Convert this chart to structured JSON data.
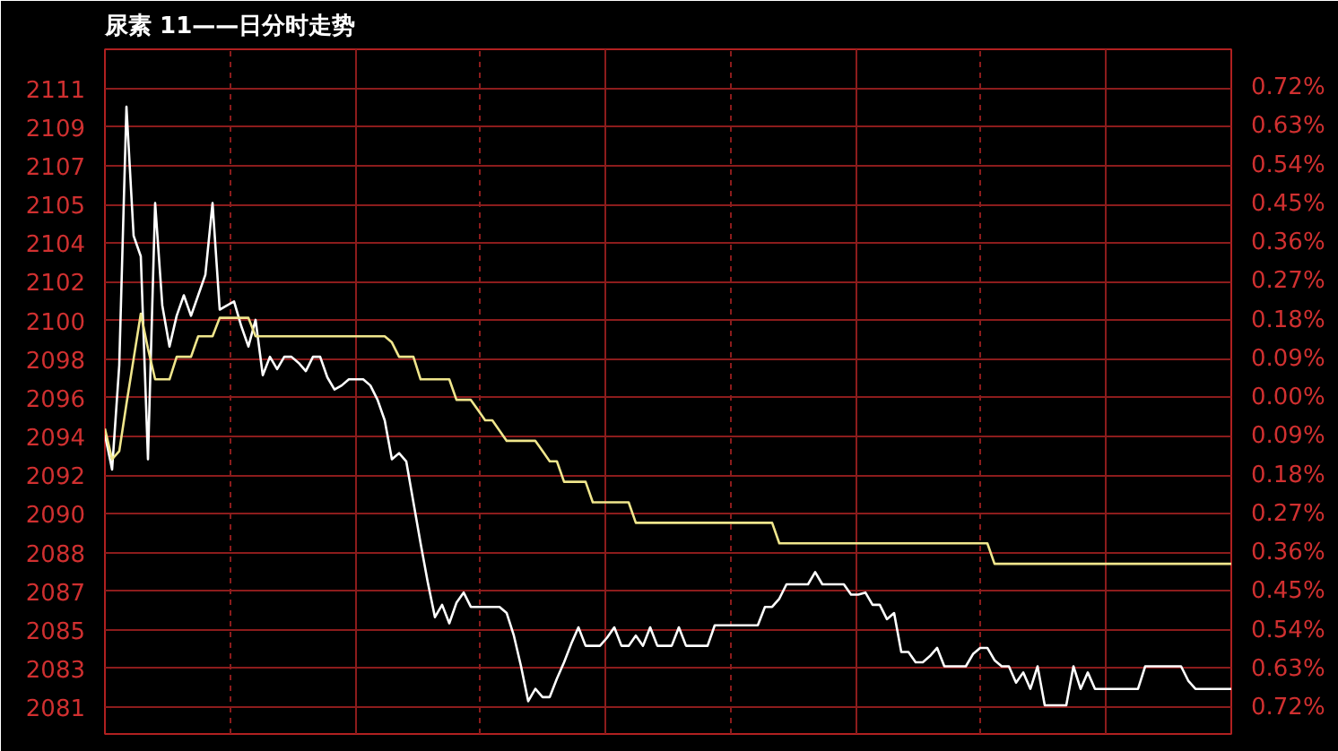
{
  "chart_data": {
    "type": "line",
    "title": "尿素 11——日分时走势",
    "categories": [
      null,
      null,
      null,
      null,
      null,
      null,
      null,
      null,
      null,
      null,
      null,
      null,
      null,
      null,
      null,
      null,
      null,
      null,
      null,
      null,
      null,
      null,
      null,
      null,
      null,
      null,
      null,
      null,
      null,
      null,
      null,
      null,
      null,
      null,
      null,
      null,
      null,
      null,
      null,
      null,
      null,
      null,
      null,
      null,
      null,
      null,
      null,
      null,
      null,
      null,
      null,
      null,
      null,
      null,
      null,
      null,
      null,
      null,
      null,
      null,
      null,
      null,
      null,
      null,
      null,
      null,
      null,
      null,
      null,
      null,
      null,
      null,
      null,
      null,
      null,
      null,
      null,
      null,
      null,
      null,
      null,
      null,
      null,
      null,
      null,
      null,
      null,
      null,
      null,
      null,
      null,
      null,
      null,
      null,
      null,
      null,
      null,
      null,
      null,
      null,
      null,
      null,
      null,
      null,
      null,
      null,
      null,
      null,
      null,
      null,
      null,
      null,
      null,
      null,
      null,
      null,
      null,
      null,
      null,
      null,
      null,
      null,
      null,
      null,
      null,
      null,
      null,
      null,
      null,
      null,
      null,
      null,
      null,
      null,
      null,
      null,
      null,
      null,
      null,
      null,
      null,
      null,
      null,
      null,
      null,
      null,
      null,
      null,
      null,
      null,
      null,
      null,
      null,
      null,
      null,
      null,
      null,
      null
    ],
    "ylim": [
      2079.6,
      2113.0
    ],
    "yticks": [
      {
        "value": 2080.91,
        "label": "2081"
      },
      {
        "value": 2082.8,
        "label": "2083"
      },
      {
        "value": 2084.68,
        "label": "2085"
      },
      {
        "value": 2086.57,
        "label": "2087"
      },
      {
        "value": 2088.45,
        "label": "2088"
      },
      {
        "value": 2090.34,
        "label": "2090"
      },
      {
        "value": 2092.23,
        "label": "2092"
      },
      {
        "value": 2094.11,
        "label": "2094"
      },
      {
        "value": 2096,
        "label": "2096"
      },
      {
        "value": 2097.89,
        "label": "2098"
      },
      {
        "value": 2099.77,
        "label": "2100"
      },
      {
        "value": 2101.66,
        "label": "2102"
      },
      {
        "value": 2103.55,
        "label": "2104"
      },
      {
        "value": 2105.43,
        "label": "2105"
      },
      {
        "value": 2107.32,
        "label": "2107"
      },
      {
        "value": 2109.2,
        "label": "2109"
      },
      {
        "value": 2111.09,
        "label": "2111"
      }
    ],
    "y2lim": [
      -0.78,
      0.81
    ],
    "y2ticks": [
      {
        "value": -0.72,
        "label": "0.72%"
      },
      {
        "value": -0.63,
        "label": "0.63%"
      },
      {
        "value": -0.54,
        "label": "0.54%"
      },
      {
        "value": -0.45,
        "label": "0.45%"
      },
      {
        "value": -0.36,
        "label": "0.36%"
      },
      {
        "value": -0.27,
        "label": "0.27%"
      },
      {
        "value": -0.18,
        "label": "0.18%"
      },
      {
        "value": -0.09,
        "label": "0.09%"
      },
      {
        "value": 0,
        "label": "0.00%"
      },
      {
        "value": 0.09,
        "label": "0.09%"
      },
      {
        "value": 0.18,
        "label": "0.18%"
      },
      {
        "value": 0.27,
        "label": "0.27%"
      },
      {
        "value": 0.36,
        "label": "0.36%"
      },
      {
        "value": 0.45,
        "label": "0.45%"
      },
      {
        "value": 0.54,
        "label": "0.54%"
      },
      {
        "value": 0.63,
        "label": "0.63%"
      },
      {
        "value": 0.72,
        "label": "0.72%"
      }
    ],
    "tick_labels": "y",
    "grid": true,
    "marker": "none",
    "line_style": "solid",
    "series": [
      {
        "color": "#ffffff",
        "values": [
          2094.2,
          2092.5,
          2097.6,
          2110.2,
          2103.9,
          2102.9,
          2093.0,
          2105.5,
          2100.5,
          2098.5,
          2100.0,
          2101.0,
          2100.0,
          2101.0,
          2102.0,
          2105.5,
          2100.3,
          2100.5,
          2100.7,
          2099.5,
          2098.5,
          2099.8,
          2097.1,
          2098.0,
          2097.4,
          2098.0,
          2098.0,
          2097.7,
          2097.3,
          2098.0,
          2098.0,
          2097.0,
          2096.4,
          2096.6,
          2096.9,
          2096.9,
          2096.9,
          2096.6,
          2095.9,
          2094.9,
          2093.0,
          2093.3,
          2092.9,
          2090.9,
          2088.9,
          2087.0,
          2085.3,
          2085.9,
          2085.0,
          2086.0,
          2086.5,
          2085.8,
          2085.8,
          2085.8,
          2085.8,
          2085.8,
          2085.5,
          2084.4,
          2082.9,
          2081.2,
          2081.8,
          2081.4,
          2081.4,
          2082.3,
          2083.1,
          2084.0,
          2084.8,
          2083.9,
          2083.9,
          2083.9,
          2084.3,
          2084.8,
          2083.9,
          2083.9,
          2084.4,
          2083.9,
          2084.8,
          2083.9,
          2083.9,
          2083.9,
          2084.8,
          2083.9,
          2083.9,
          2083.9,
          2083.9,
          2084.9,
          2084.9,
          2084.9,
          2084.9,
          2084.9,
          2084.9,
          2084.9,
          2085.8,
          2085.8,
          2086.2,
          2086.9,
          2086.9,
          2086.9,
          2086.9,
          2087.5,
          2086.9,
          2086.9,
          2086.9,
          2086.9,
          2086.4,
          2086.4,
          2086.5,
          2085.9,
          2085.9,
          2085.2,
          2085.5,
          2083.6,
          2083.6,
          2083.1,
          2083.1,
          2083.4,
          2083.8,
          2082.9,
          2082.9,
          2082.9,
          2082.9,
          2083.5,
          2083.8,
          2083.8,
          2083.2,
          2082.9,
          2082.9,
          2082.1,
          2082.6,
          2081.8,
          2082.9,
          2081.0,
          2081.0,
          2081.0,
          2081.0,
          2082.9,
          2081.8,
          2082.6,
          2081.8,
          2081.8,
          2081.8,
          2081.8,
          2081.8,
          2081.8,
          2081.8,
          2082.9,
          2082.9,
          2082.9,
          2082.9,
          2082.9,
          2082.9,
          2082.2,
          2081.8,
          2081.8,
          2081.8,
          2081.8,
          2081.8,
          2081.8
        ]
      },
      {
        "color": "#f0e68c",
        "values": [
          2094.5,
          2093.0,
          2093.4,
          2095.7,
          2097.9,
          2100.1,
          2098.4,
          2096.9,
          2096.9,
          2096.9,
          2098.0,
          2098.0,
          2098.0,
          2099.0,
          2099.0,
          2099.0,
          2099.9,
          2099.9,
          2099.9,
          2099.9,
          2099.9,
          2099.0,
          2099.0,
          2099.0,
          2099.0,
          2099.0,
          2099.0,
          2099.0,
          2099.0,
          2099.0,
          2099.0,
          2099.0,
          2099.0,
          2099.0,
          2099.0,
          2099.0,
          2099.0,
          2099.0,
          2099.0,
          2099.0,
          2098.7,
          2098.0,
          2098.0,
          2098.0,
          2096.9,
          2096.9,
          2096.9,
          2096.9,
          2096.9,
          2095.9,
          2095.9,
          2095.9,
          2095.4,
          2094.9,
          2094.9,
          2094.4,
          2093.9,
          2093.9,
          2093.9,
          2093.9,
          2093.9,
          2093.4,
          2092.9,
          2092.9,
          2091.9,
          2091.9,
          2091.9,
          2091.9,
          2090.9,
          2090.9,
          2090.9,
          2090.9,
          2090.9,
          2090.9,
          2089.9,
          2089.9,
          2089.9,
          2089.9,
          2089.9,
          2089.9,
          2089.9,
          2089.9,
          2089.9,
          2089.9,
          2089.9,
          2089.9,
          2089.9,
          2089.9,
          2089.9,
          2089.9,
          2089.9,
          2089.9,
          2089.9,
          2089.9,
          2088.9,
          2088.9,
          2088.9,
          2088.9,
          2088.9,
          2088.9,
          2088.9,
          2088.9,
          2088.9,
          2088.9,
          2088.9,
          2088.9,
          2088.9,
          2088.9,
          2088.9,
          2088.9,
          2088.9,
          2088.9,
          2088.9,
          2088.9,
          2088.9,
          2088.9,
          2088.9,
          2088.9,
          2088.9,
          2088.9,
          2088.9,
          2088.9,
          2088.9,
          2088.9,
          2087.9,
          2087.9,
          2087.9,
          2087.9,
          2087.9,
          2087.9,
          2087.9,
          2087.9,
          2087.9,
          2087.9,
          2087.9,
          2087.9,
          2087.9,
          2087.9,
          2087.9,
          2087.9,
          2087.9,
          2087.9,
          2087.9,
          2087.9,
          2087.9,
          2087.9,
          2087.9,
          2087.9,
          2087.9,
          2087.9,
          2087.9,
          2087.9,
          2087.9,
          2087.9,
          2087.9,
          2087.9,
          2087.9,
          2087.9
        ]
      }
    ]
  }
}
